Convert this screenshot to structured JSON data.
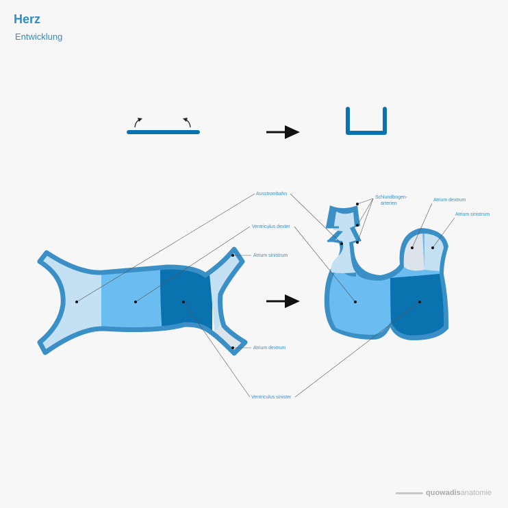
{
  "header": {
    "title": "Herz",
    "subtitle": "Entwicklung"
  },
  "labels": {
    "ausstrombahn": "Ausstrombahn",
    "ventriculus_dexter": "Ventriculus dexter",
    "atrium_sinistrum_left": "Atrium sinistrum",
    "atrium_dextrum_left": "Atrium dextrum",
    "ventriculus_sinister": "Ventriculus sinister",
    "schlundbogen_line1": "Schlundbogen-",
    "schlundbogen_line2": "arterien",
    "atrium_dextrum_right": "Atrium dextrum",
    "atrium_sinistrum_right": "Atrium sinistrum"
  },
  "brand": {
    "name": "quowadis",
    "suffix": " anatomie"
  },
  "colors": {
    "outline": "#3a8fc6",
    "light": "#c4e1f4",
    "medium": "#6bbcf0",
    "dark": "#0b72b0",
    "gray": "#dde3ea",
    "label": "#3a8fc6",
    "title": "#2d8ec9"
  }
}
